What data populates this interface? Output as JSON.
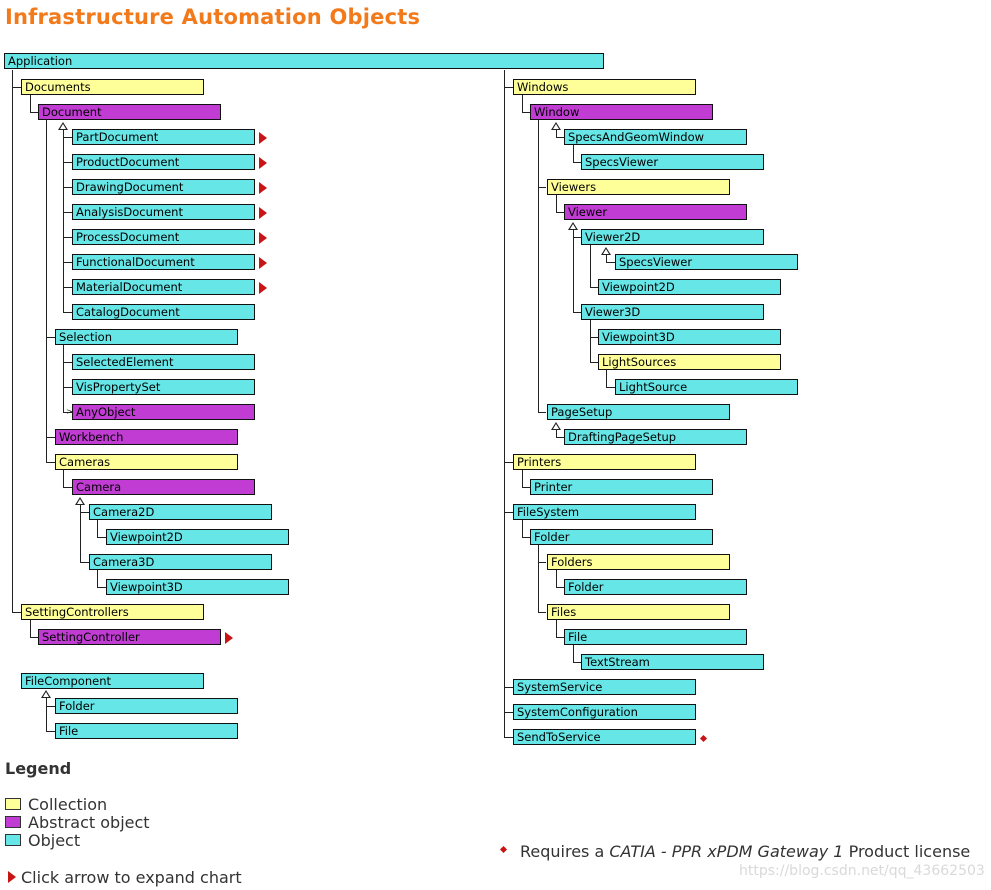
{
  "title": "Infrastructure Automation Objects",
  "colors": {
    "collection": "#ffff99",
    "abstract": "#c03cd2",
    "object": "#66e6e6",
    "title": "#f27a1a",
    "arrow": "#c81414"
  },
  "nodes": {
    "application": "Application",
    "documents": "Documents",
    "document": "Document",
    "part_document": "PartDocument",
    "product_document": "ProductDocument",
    "drawing_document": "DrawingDocument",
    "analysis_document": "AnalysisDocument",
    "process_document": "ProcessDocument",
    "functional_document": "FunctionalDocument",
    "material_document": "MaterialDocument",
    "catalog_document": "CatalogDocument",
    "selection": "Selection",
    "selected_element": "SelectedElement",
    "vis_property_set": "VisPropertySet",
    "any_object": "AnyObject",
    "workbench": "Workbench",
    "cameras": "Cameras",
    "camera": "Camera",
    "camera2d": "Camera2D",
    "viewpoint2d_cam": "Viewpoint2D",
    "camera3d": "Camera3D",
    "viewpoint3d_cam": "Viewpoint3D",
    "setting_controllers": "SettingControllers",
    "setting_controller": "SettingController",
    "file_component": "FileComponent",
    "fc_folder": "Folder",
    "fc_file": "File",
    "windows": "Windows",
    "window": "Window",
    "specs_and_geom_window": "SpecsAndGeomWindow",
    "specs_viewer_win": "SpecsViewer",
    "viewers": "Viewers",
    "viewer": "Viewer",
    "viewer2d": "Viewer2D",
    "specs_viewer_v2d": "SpecsViewer",
    "viewpoint2d_v": "Viewpoint2D",
    "viewer3d": "Viewer3D",
    "viewpoint3d_v": "Viewpoint3D",
    "light_sources": "LightSources",
    "light_source": "LightSource",
    "page_setup": "PageSetup",
    "drafting_page_setup": "DraftingPageSetup",
    "printers": "Printers",
    "printer": "Printer",
    "file_system": "FileSystem",
    "fs_folder": "Folder",
    "fs_folders": "Folders",
    "fs_folders_folder": "Folder",
    "fs_files": "Files",
    "fs_file": "File",
    "text_stream": "TextStream",
    "system_service": "SystemService",
    "system_configuration": "SystemConfiguration",
    "send_to_service": "SendToService"
  },
  "legend": {
    "title": "Legend",
    "collection": "Collection",
    "abstract": "Abstract object",
    "object": "Object",
    "expand": "Click arrow to expand chart"
  },
  "license": {
    "prefix": "Requires a",
    "product": "CATIA - PPR xPDM Gateway 1",
    "suffix": "Product license"
  },
  "watermark": "https://blog.csdn.net/qq_43662503"
}
